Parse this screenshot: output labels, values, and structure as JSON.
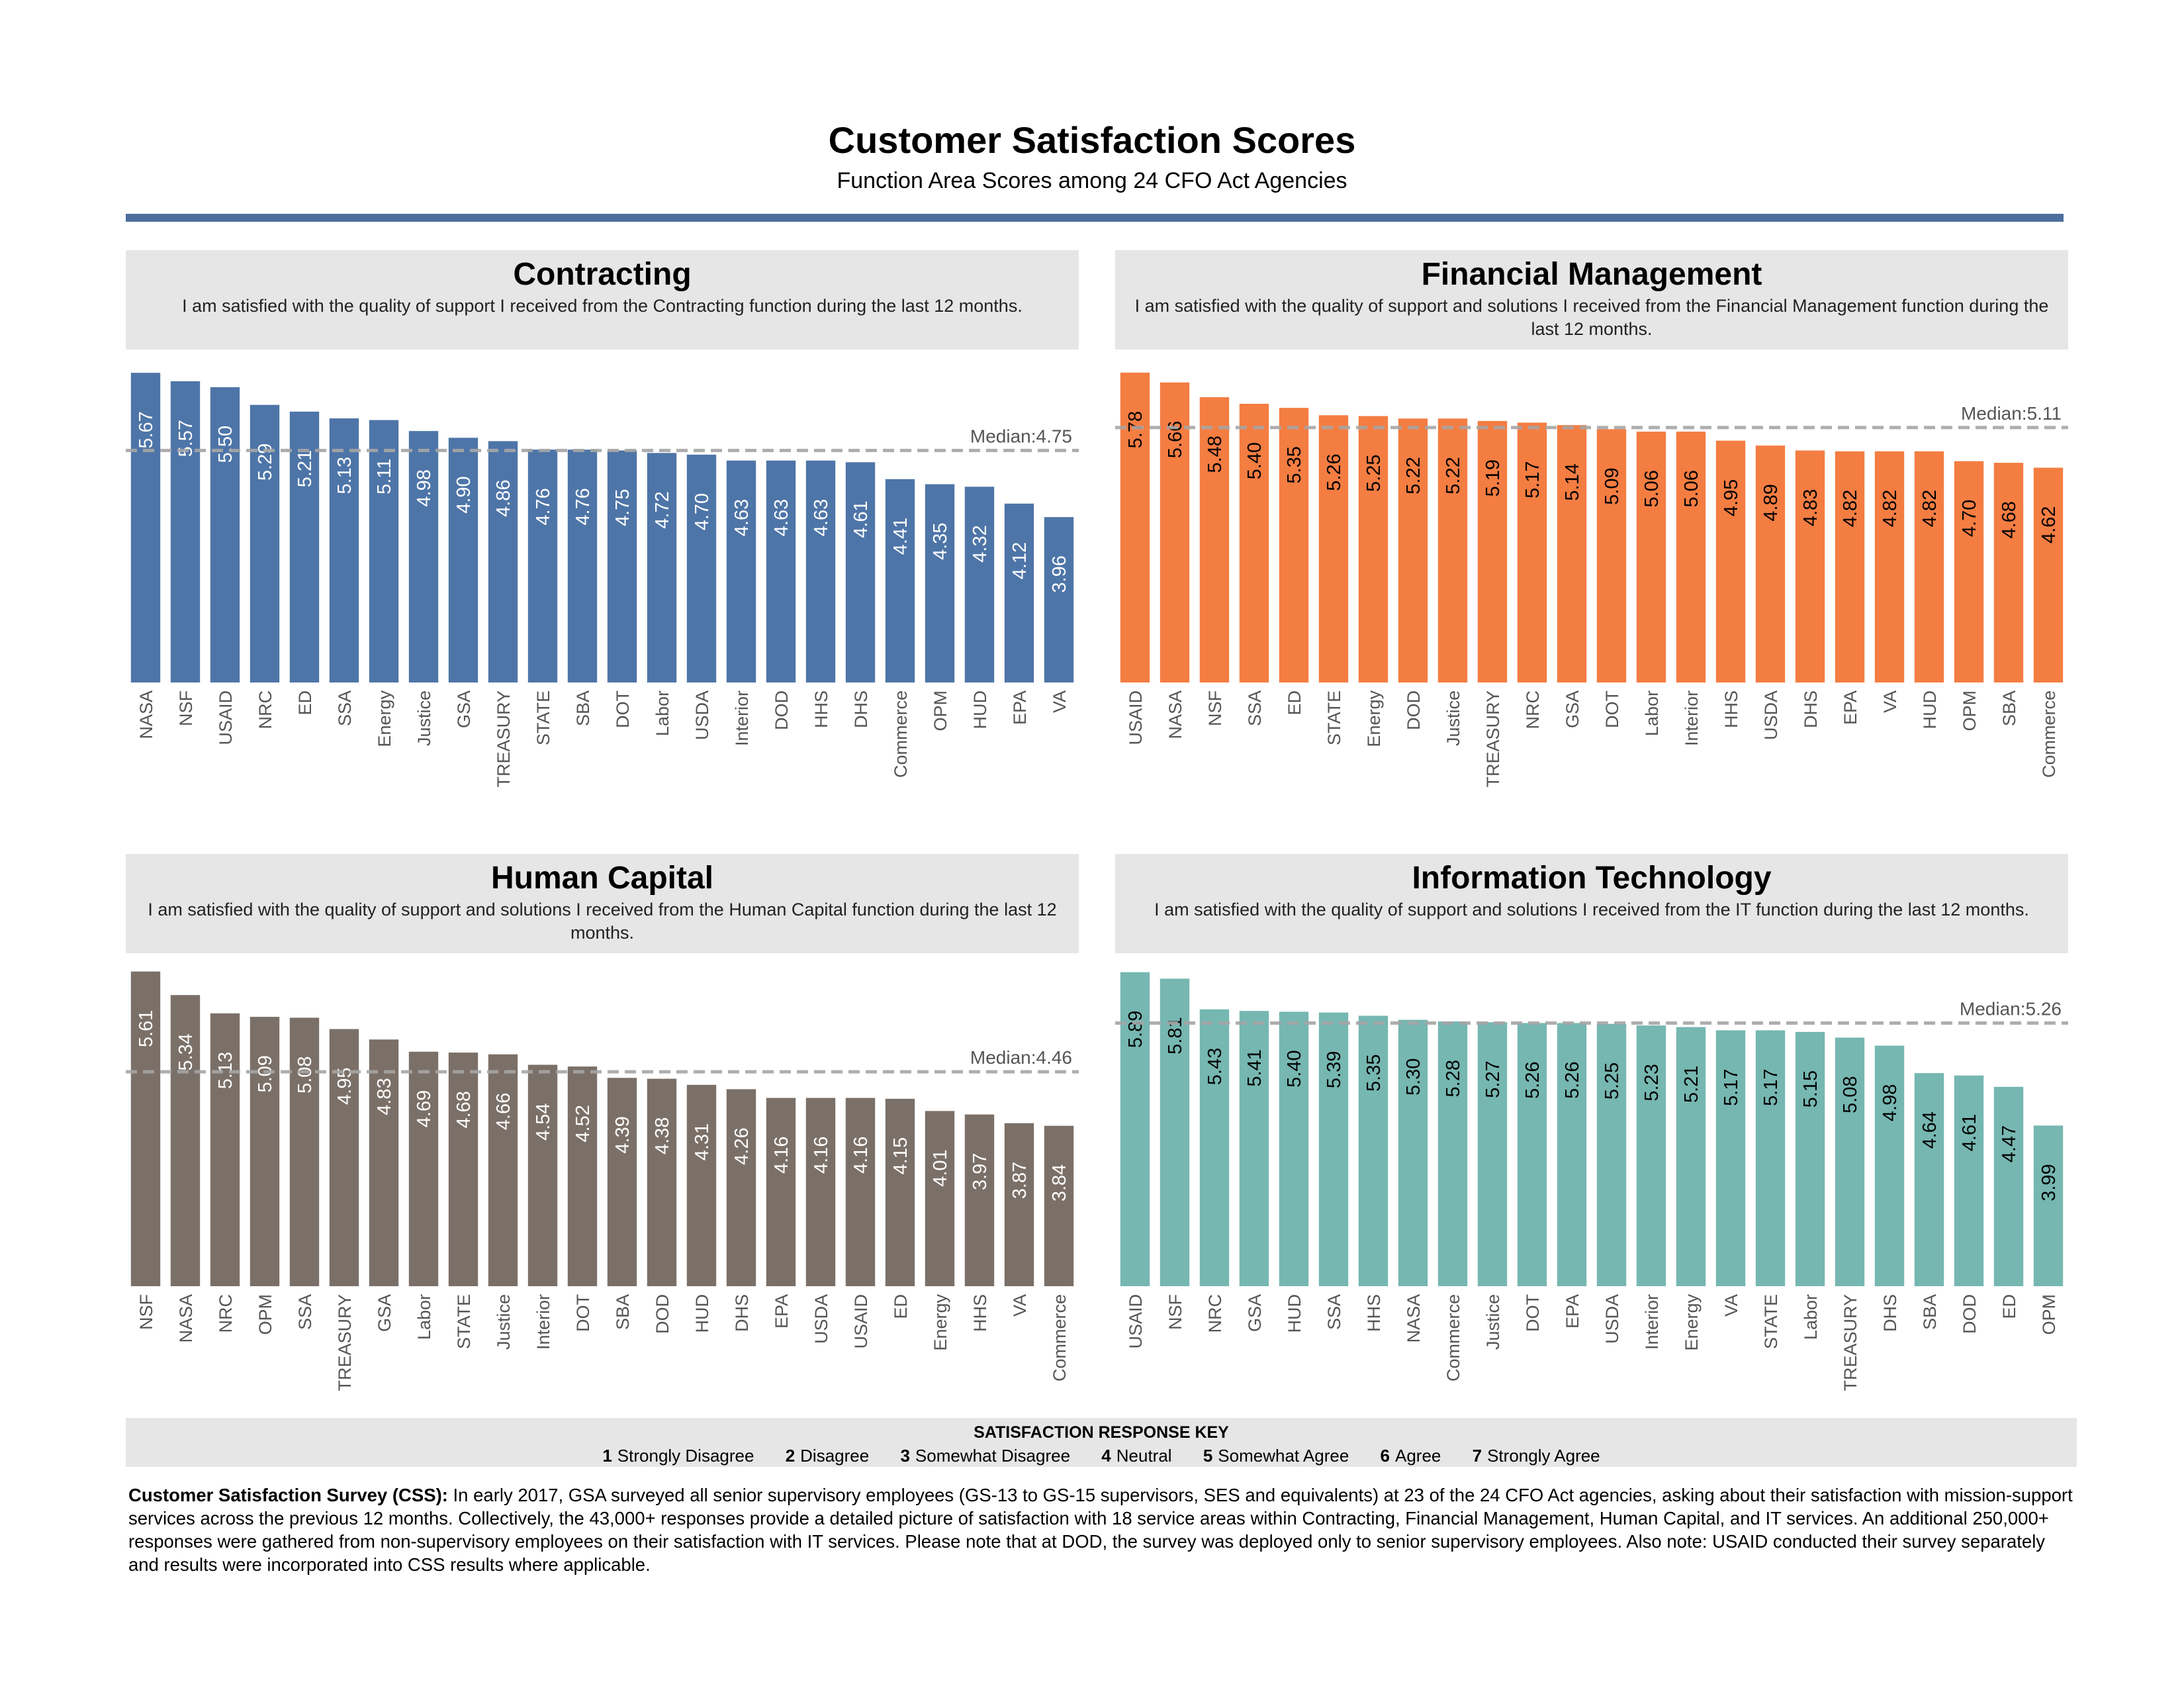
{
  "page": {
    "title": "Customer Satisfaction Scores",
    "subtitle": "Function Area Scores among 24 CFO Act Agencies"
  },
  "colors": {
    "title_rule": "#4d6e9c",
    "header_bg": "#e6e6e6",
    "median_line": "#a6a6a6"
  },
  "chart_data": [
    {
      "type": "bar",
      "title": "Contracting",
      "subtitle": "I am satisfied with the quality of support I received from the Contracting function during the last 12 months.",
      "color": "#4e75a8",
      "label_color": "#ffffff",
      "median_label": "Median:4.75",
      "median": 4.75,
      "ylim": [
        2.0,
        5.75
      ],
      "categories": [
        "NASA",
        "NSF",
        "USAID",
        "NRC",
        "ED",
        "SSA",
        "Energy",
        "Justice",
        "GSA",
        "TREASURY",
        "STATE",
        "SBA",
        "DOT",
        "Labor",
        "USDA",
        "Interior",
        "DOD",
        "HHS",
        "DHS",
        "Commerce",
        "OPM",
        "HUD",
        "EPA",
        "VA"
      ],
      "values": [
        5.67,
        5.57,
        5.5,
        5.29,
        5.21,
        5.13,
        5.11,
        4.98,
        4.9,
        4.86,
        4.76,
        4.76,
        4.75,
        4.72,
        4.7,
        4.63,
        4.63,
        4.63,
        4.61,
        4.41,
        4.35,
        4.32,
        4.12,
        3.96
      ],
      "labels": [
        "5.67",
        "5.57",
        "5.50",
        "5.29",
        "5.21",
        "5.13",
        "5.11",
        "4.98",
        "4.90",
        "4.86",
        "4.76",
        "4.76",
        "4.75",
        "4.72",
        "4.70",
        "4.63",
        "4.63",
        "4.63",
        "4.61",
        "4.41",
        "4.35",
        "4.32",
        "4.12",
        "3.96"
      ]
    },
    {
      "type": "bar",
      "title": "Financial Management",
      "subtitle": "I am satisfied with the quality of support and solutions I received from the Financial Management function during the last 12 months.",
      "color": "#f47d42",
      "label_color": "#000000",
      "median_label": "Median:5.11",
      "median": 5.11,
      "ylim": [
        2.0,
        5.86
      ],
      "categories": [
        "USAID",
        "NASA",
        "NSF",
        "SSA",
        "ED",
        "STATE",
        "Energy",
        "DOD",
        "Justice",
        "TREASURY",
        "NRC",
        "GSA",
        "DOT",
        "Labor",
        "Interior",
        "HHS",
        "USDA",
        "DHS",
        "EPA",
        "VA",
        "HUD",
        "OPM",
        "SBA",
        "Commerce"
      ],
      "values": [
        5.78,
        5.66,
        5.48,
        5.4,
        5.35,
        5.26,
        5.25,
        5.22,
        5.22,
        5.19,
        5.17,
        5.14,
        5.09,
        5.06,
        5.06,
        4.95,
        4.89,
        4.83,
        4.82,
        4.82,
        4.82,
        4.7,
        4.68,
        4.62
      ],
      "labels": [
        "5.78",
        "5.66",
        "5.48",
        "5.40",
        "5.35",
        "5.26",
        "5.25",
        "5.22",
        "5.22",
        "5.19",
        "5.17",
        "5.14",
        "5.09",
        "5.06",
        "5.06",
        "4.95",
        "4.89",
        "4.83",
        "4.82",
        "4.82",
        "4.82",
        "4.70",
        "4.68",
        "4.62"
      ]
    },
    {
      "type": "bar",
      "title": "Human Capital",
      "subtitle": "I am satisfied with the quality of support and solutions I received from the Human Capital function during the last 12 months.",
      "color": "#7b7068",
      "label_color": "#ffffff",
      "median_label": "Median:4.46",
      "median": 4.46,
      "ylim": [
        2.0,
        5.63
      ],
      "categories": [
        "NSF",
        "NASA",
        "NRC",
        "OPM",
        "SSA",
        "TREASURY",
        "GSA",
        "Labor",
        "STATE",
        "Justice",
        "Interior",
        "DOT",
        "SBA",
        "DOD",
        "HUD",
        "DHS",
        "EPA",
        "USDA",
        "USAID",
        "ED",
        "Energy",
        "HHS",
        "VA",
        "Commerce"
      ],
      "values": [
        5.61,
        5.34,
        5.13,
        5.09,
        5.08,
        4.95,
        4.83,
        4.69,
        4.68,
        4.66,
        4.54,
        4.52,
        4.39,
        4.38,
        4.31,
        4.26,
        4.16,
        4.16,
        4.16,
        4.15,
        4.01,
        3.97,
        3.87,
        3.84
      ],
      "labels": [
        "5.61",
        "5.34",
        "5.13",
        "5.09",
        "5.08",
        "4.95",
        "4.83",
        "4.69",
        "4.68",
        "4.66",
        "4.54",
        "4.52",
        "4.39",
        "4.38",
        "4.31",
        "4.26",
        "4.16",
        "4.16",
        "4.16",
        "4.15",
        "4.01",
        "3.97",
        "3.87",
        "3.84"
      ]
    },
    {
      "type": "bar",
      "title": "Information Technology",
      "subtitle": "I am satisfied with the quality of support and solutions I received from the IT function during the last 12 months.",
      "color": "#76b7b1",
      "label_color": "#000000",
      "median_label": "Median:5.26",
      "median": 5.26,
      "ylim": [
        2.0,
        5.92
      ],
      "categories": [
        "USAID",
        "NSF",
        "NRC",
        "GSA",
        "HUD",
        "SSA",
        "HHS",
        "NASA",
        "Commerce",
        "Justice",
        "DOT",
        "EPA",
        "USDA",
        "Interior",
        "Energy",
        "VA",
        "STATE",
        "Labor",
        "TREASURY",
        "DHS",
        "SBA",
        "DOD",
        "ED",
        "OPM"
      ],
      "values": [
        5.89,
        5.81,
        5.43,
        5.41,
        5.4,
        5.39,
        5.35,
        5.3,
        5.28,
        5.27,
        5.26,
        5.26,
        5.25,
        5.23,
        5.21,
        5.17,
        5.17,
        5.15,
        5.08,
        4.98,
        4.64,
        4.61,
        4.47,
        3.99
      ],
      "labels": [
        "5.89",
        "5.81",
        "5.43",
        "5.41",
        "5.40",
        "5.39",
        "5.35",
        "5.30",
        "5.28",
        "5.27",
        "5.26",
        "5.26",
        "5.25",
        "5.23",
        "5.21",
        "5.17",
        "5.17",
        "5.15",
        "5.08",
        "4.98",
        "4.64",
        "4.61",
        "4.47",
        "3.99"
      ]
    }
  ],
  "key": {
    "title": "SATISFACTION RESPONSE KEY",
    "items": [
      {
        "num": "1",
        "label": "Strongly Disagree"
      },
      {
        "num": "2",
        "label": "Disagree"
      },
      {
        "num": "3",
        "label": "Somewhat Disagree"
      },
      {
        "num": "4",
        "label": "Neutral"
      },
      {
        "num": "5",
        "label": "Somewhat Agree"
      },
      {
        "num": "6",
        "label": "Agree"
      },
      {
        "num": "7",
        "label": "Strongly Agree"
      }
    ]
  },
  "footnote": {
    "bold": "Customer Satisfaction Survey (CSS):",
    "text": " In early 2017, GSA surveyed all senior supervisory employees (GS-13 to GS-15 supervisors, SES and equivalents) at 23 of the 24 CFO Act agencies, asking about their satisfaction with mission-support services across the previous 12 months. Collectively, the 43,000+ responses provide a detailed picture of satisfaction with 18 service areas within Contracting, Financial Management, Human Capital, and IT services. An additional 250,000+ responses were gathered from non-supervisory employees on their satisfaction with IT services. Please note that at DOD, the survey was deployed only to senior supervisory employees. Also note: USAID conducted their survey separately and results were incorporated into CSS results where applicable."
  }
}
